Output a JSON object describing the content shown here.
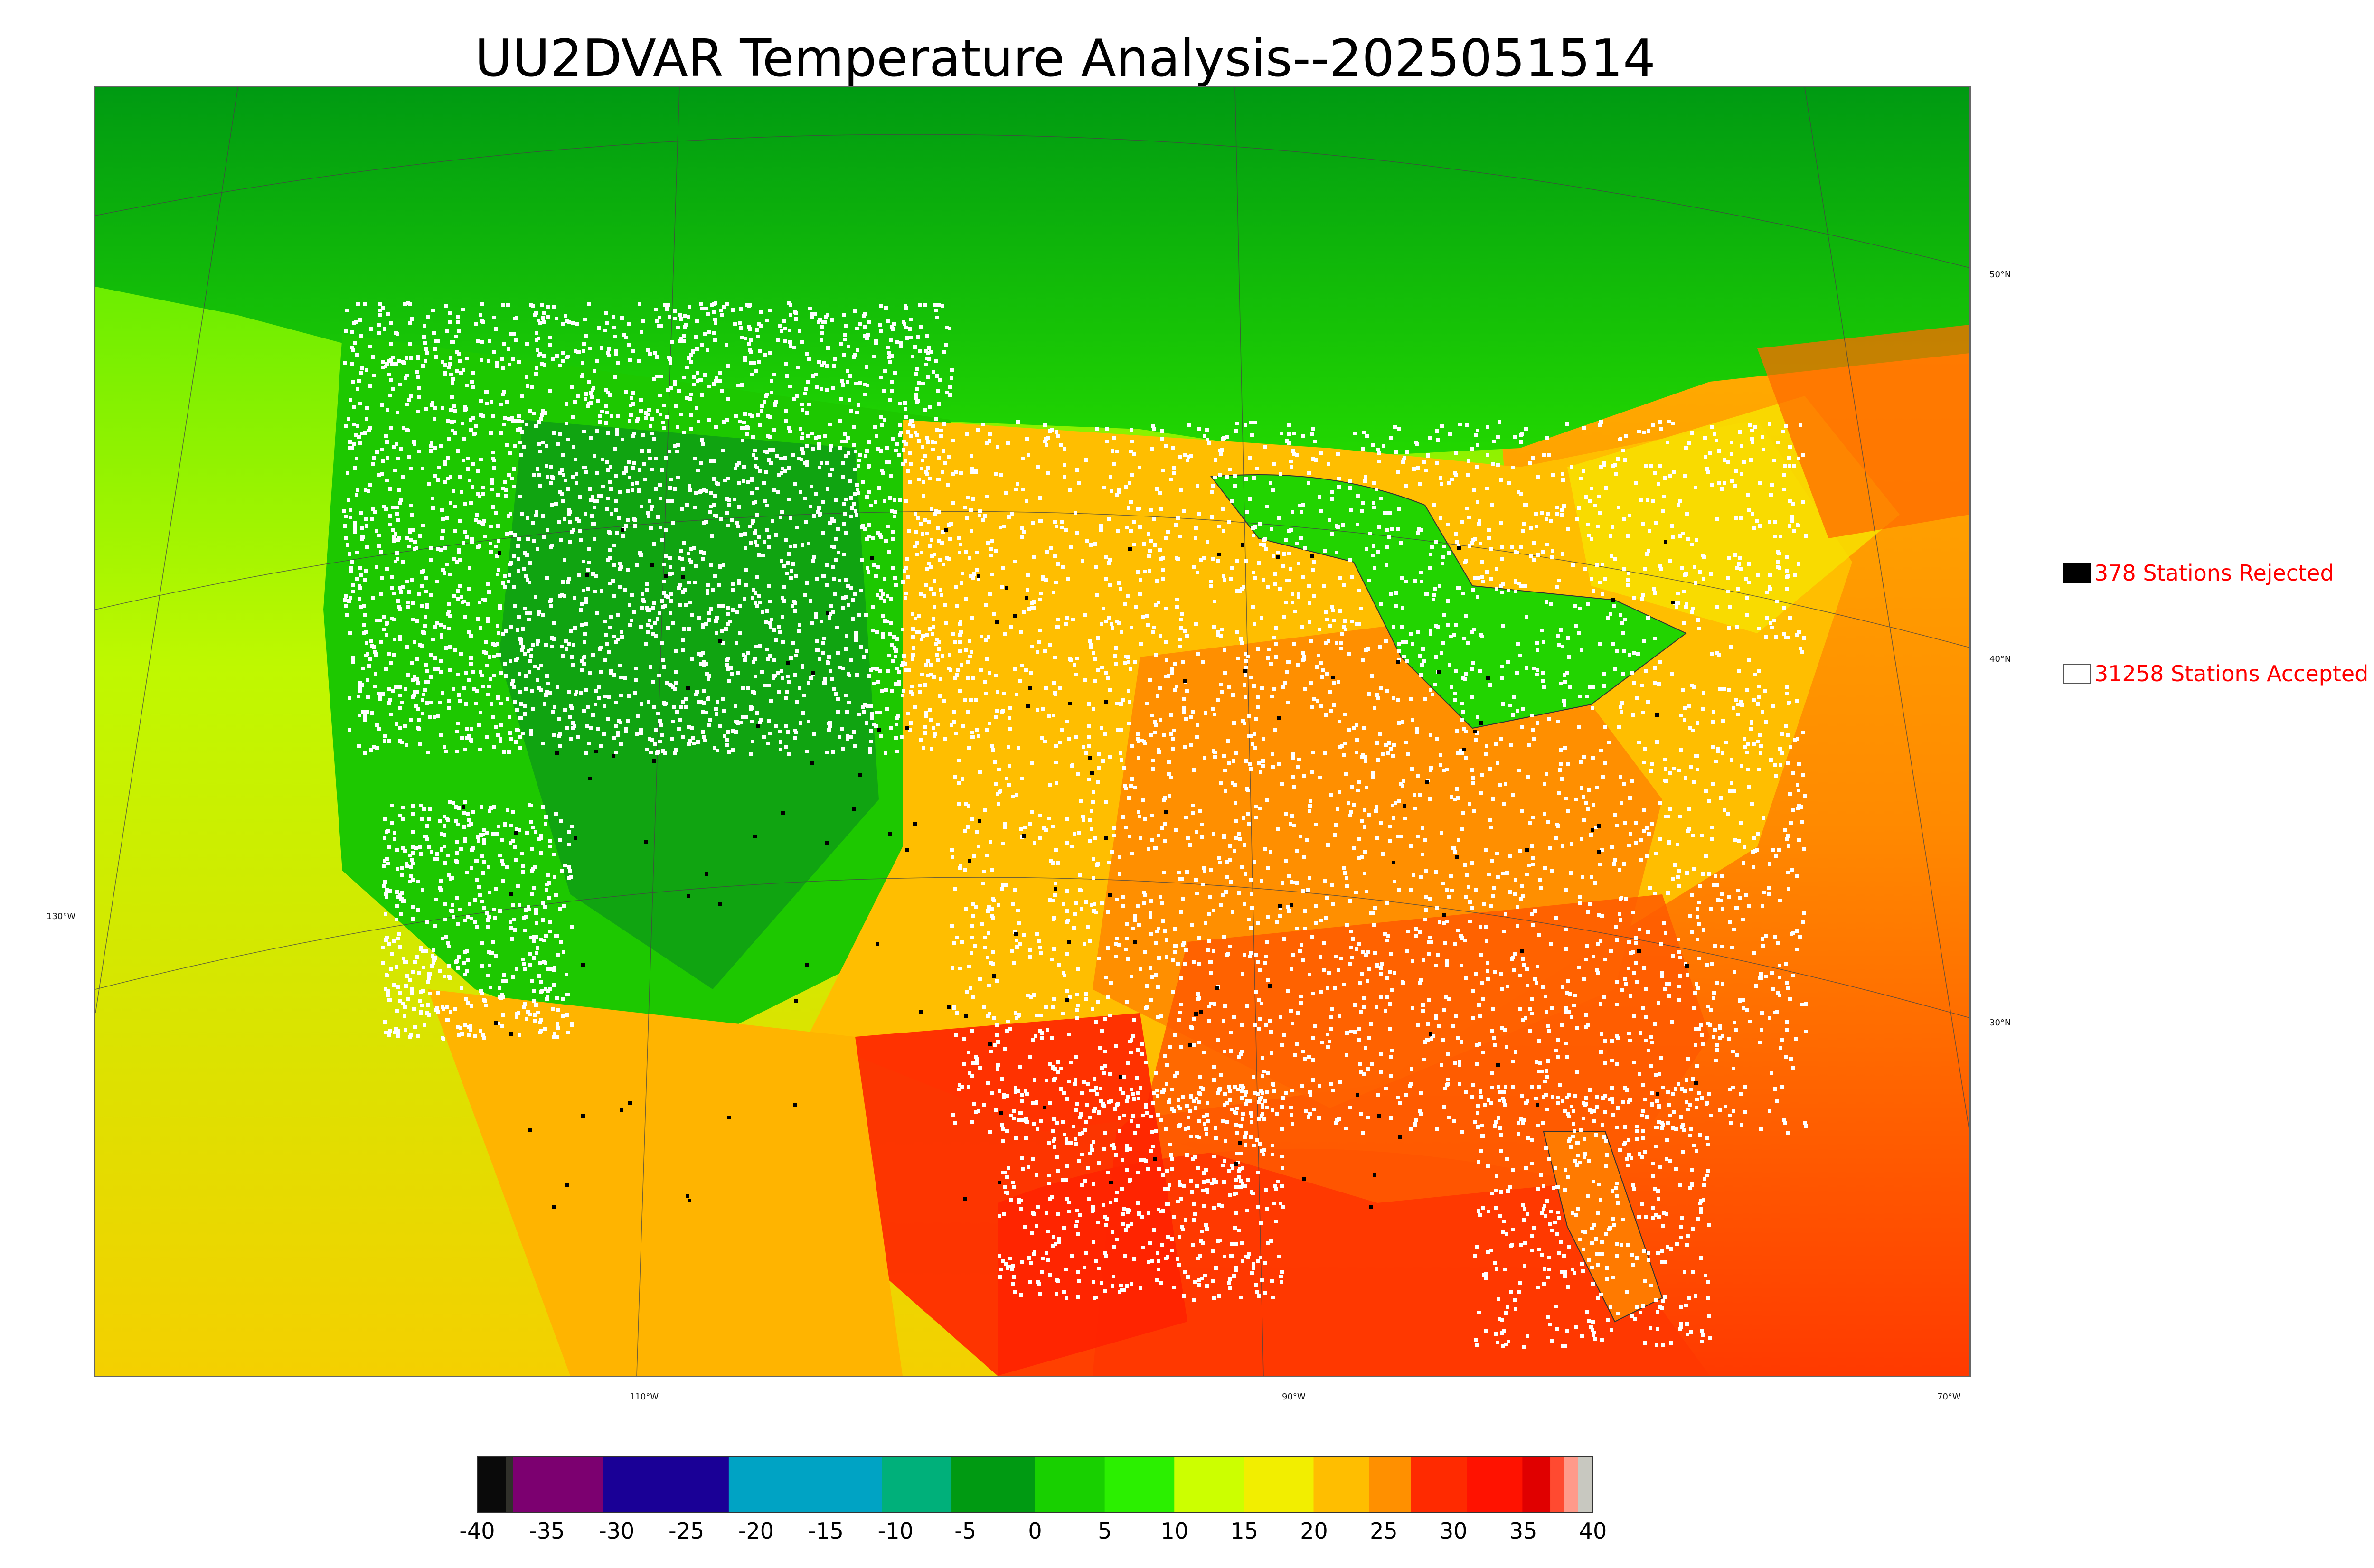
{
  "title": "UU2DVAR Temperature Analysis--2025051514",
  "map": {
    "latitude_labels": [
      "50°N",
      "40°N",
      "30°N"
    ],
    "longitude_labels": [
      "130°W",
      "110°W",
      "90°W",
      "70°W"
    ],
    "colors": {
      "cold": "#008c00",
      "cool": "#22e100",
      "mild": "#d8ff00",
      "warm": "#ffc200",
      "hot": "#ff6a00",
      "very_hot": "#ff1a00",
      "water_ocean_west": "#d6f500",
      "water_atlantic": "#ff7a00",
      "water_gulf": "#ff3a00",
      "lake": "#20d800",
      "station_accepted": "#ffffff",
      "station_rejected": "#000000"
    }
  },
  "legend": {
    "rejected": {
      "text": "378 Stations Rejected",
      "count": 378,
      "swatch_color": "#000000"
    },
    "accepted": {
      "text": "31258 Stations Accepted",
      "count": 31258,
      "swatch_color": "#ffffff"
    }
  },
  "colorbar": {
    "ticks": [
      "-40",
      "-35",
      "-30",
      "-25",
      "-20",
      "-15",
      "-10",
      "-5",
      "0",
      "5",
      "10",
      "15",
      "20",
      "25",
      "30",
      "35",
      "40"
    ],
    "range": [
      -40,
      40
    ],
    "bands": [
      {
        "from": -40,
        "to": -38,
        "color": "#0a0a0a"
      },
      {
        "from": -38,
        "to": -37.5,
        "color": "#30302a"
      },
      {
        "from": -37.5,
        "to": -31,
        "color": "#7c0070"
      },
      {
        "from": -31,
        "to": -22,
        "color": "#1a0096"
      },
      {
        "from": -22,
        "to": -11,
        "color": "#00a3c4"
      },
      {
        "from": -11,
        "to": -6,
        "color": "#00b07a"
      },
      {
        "from": -6,
        "to": 0,
        "color": "#009a12"
      },
      {
        "from": 0,
        "to": 5,
        "color": "#18d000"
      },
      {
        "from": 5,
        "to": 10,
        "color": "#2bf000"
      },
      {
        "from": 10,
        "to": 15,
        "color": "#ccff00"
      },
      {
        "from": 15,
        "to": 20,
        "color": "#f2ee00"
      },
      {
        "from": 20,
        "to": 24,
        "color": "#ffbe00"
      },
      {
        "from": 24,
        "to": 27,
        "color": "#ff9000"
      },
      {
        "from": 27,
        "to": 31,
        "color": "#ff2a00"
      },
      {
        "from": 31,
        "to": 35,
        "color": "#ff1200"
      },
      {
        "from": 35,
        "to": 37,
        "color": "#e00000"
      },
      {
        "from": 37,
        "to": 38,
        "color": "#ff4a30"
      },
      {
        "from": 38,
        "to": 39,
        "color": "#ff9a8a"
      },
      {
        "from": 39,
        "to": 40,
        "color": "#c8c8c0"
      }
    ]
  }
}
